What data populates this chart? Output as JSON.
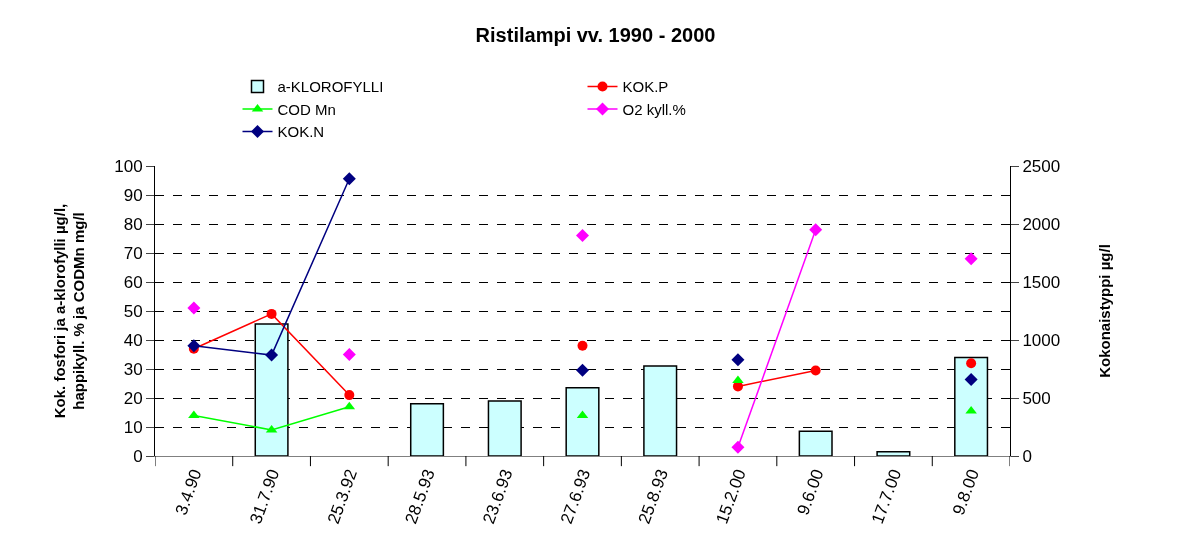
{
  "chart_data": {
    "type": "bar",
    "title": "Ristilampi vv. 1990 - 2000",
    "ylabel": "Kok. fosfori ja a-klorofylli µg/l,\nhappikyll. % ja CODMn mg/l",
    "y2label": "Kokonaistyppi µg/l",
    "categories": [
      "3.4.90",
      "31.7.90",
      "25.3.92",
      "28.5.93",
      "23.6.93",
      "27.6.93",
      "25.8.93",
      "15.2.00",
      "9.6.00",
      "17.7.00",
      "9.8.00"
    ],
    "series": [
      {
        "name": "a-KLOROFYLLI",
        "color": "#ccffff",
        "values": [
          null,
          45.5,
          null,
          18,
          19,
          23.5,
          31,
          null,
          8.5,
          1.5,
          34
        ]
      },
      {
        "name": "KOK.P",
        "type": "line",
        "color": "#ff0000",
        "marker": "circle",
        "values": [
          37,
          49,
          21,
          null,
          null,
          38,
          null,
          24,
          29.5,
          null,
          32
        ]
      },
      {
        "name": "COD Mn",
        "type": "line",
        "color": "#00ff00",
        "marker": "triangle",
        "values": [
          14,
          9,
          17,
          null,
          null,
          14,
          null,
          26,
          null,
          null,
          15.5
        ]
      },
      {
        "name": "O2 kyll.%",
        "type": "line",
        "color": "#ff00ff",
        "marker": "diamond",
        "values": [
          51,
          null,
          35,
          null,
          null,
          76,
          null,
          3,
          78,
          null,
          68
        ]
      },
      {
        "name": "KOK.N",
        "type": "line",
        "color": "#000080",
        "marker": "diamond",
        "axis": "y2",
        "values": [
          950,
          870,
          2390,
          null,
          null,
          740,
          null,
          830,
          null,
          null,
          660
        ]
      }
    ],
    "ylim": [
      0,
      100
    ],
    "yticks": [
      0,
      10,
      20,
      30,
      40,
      50,
      60,
      70,
      80,
      90,
      100
    ],
    "y2lim": [
      0,
      2500
    ],
    "y2ticks": [
      0,
      500,
      1000,
      1500,
      2000,
      2500
    ],
    "grid": "y",
    "legend": "top",
    "line_style": "solid"
  }
}
